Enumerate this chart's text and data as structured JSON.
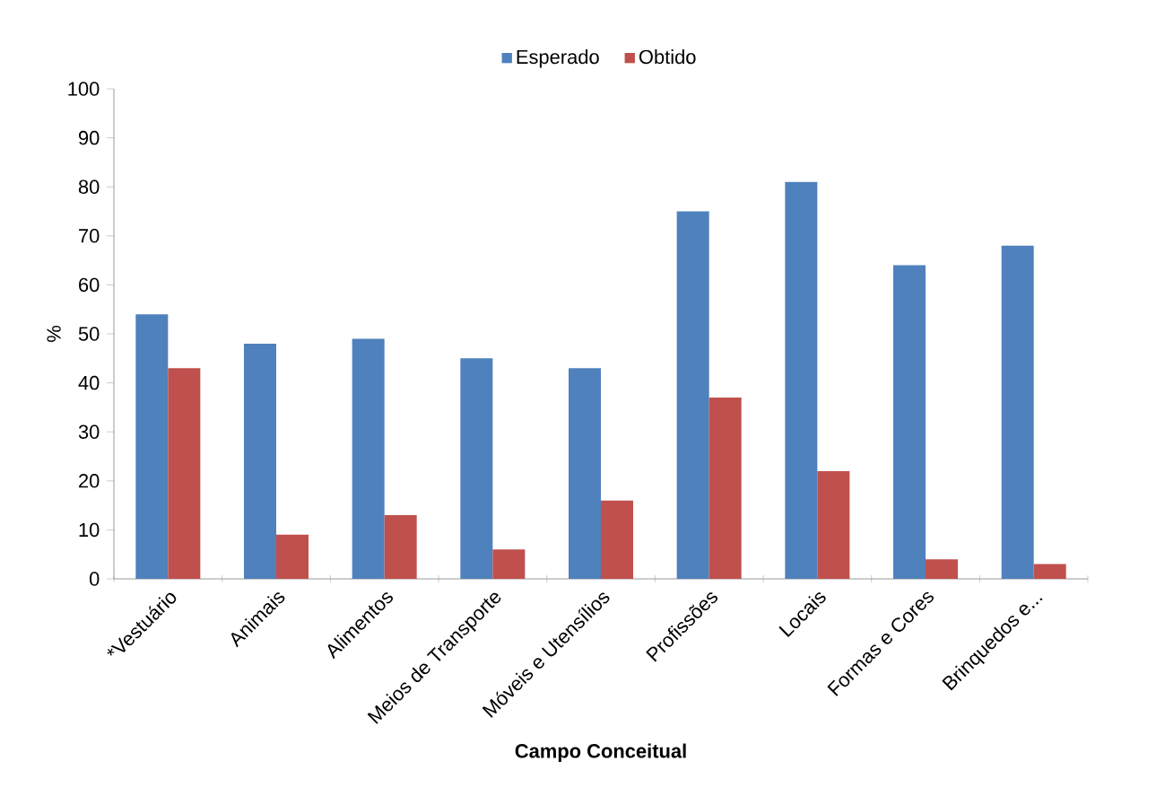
{
  "chart_data": {
    "type": "bar",
    "xlabel": "Campo Conceitual",
    "ylabel": "%",
    "categories": [
      "*Vestuário",
      "Animais",
      "Alimentos",
      "Meios de Transporte",
      "Móveis e Utensílios",
      "Profissões",
      "Locais",
      "Formas e Cores",
      "Brinquedos e..."
    ],
    "series": [
      {
        "name": "Esperado",
        "color": "#4f81bd",
        "values": [
          54,
          48,
          49,
          45,
          43,
          75,
          81,
          64,
          68
        ]
      },
      {
        "name": "Obtido",
        "color": "#c0504d",
        "values": [
          43,
          9,
          13,
          6,
          16,
          37,
          22,
          4,
          3
        ]
      }
    ],
    "ylim": [
      0,
      100
    ],
    "yticks": [
      0,
      10,
      20,
      30,
      40,
      50,
      60,
      70,
      80,
      90,
      100
    ],
    "legend": "top"
  }
}
